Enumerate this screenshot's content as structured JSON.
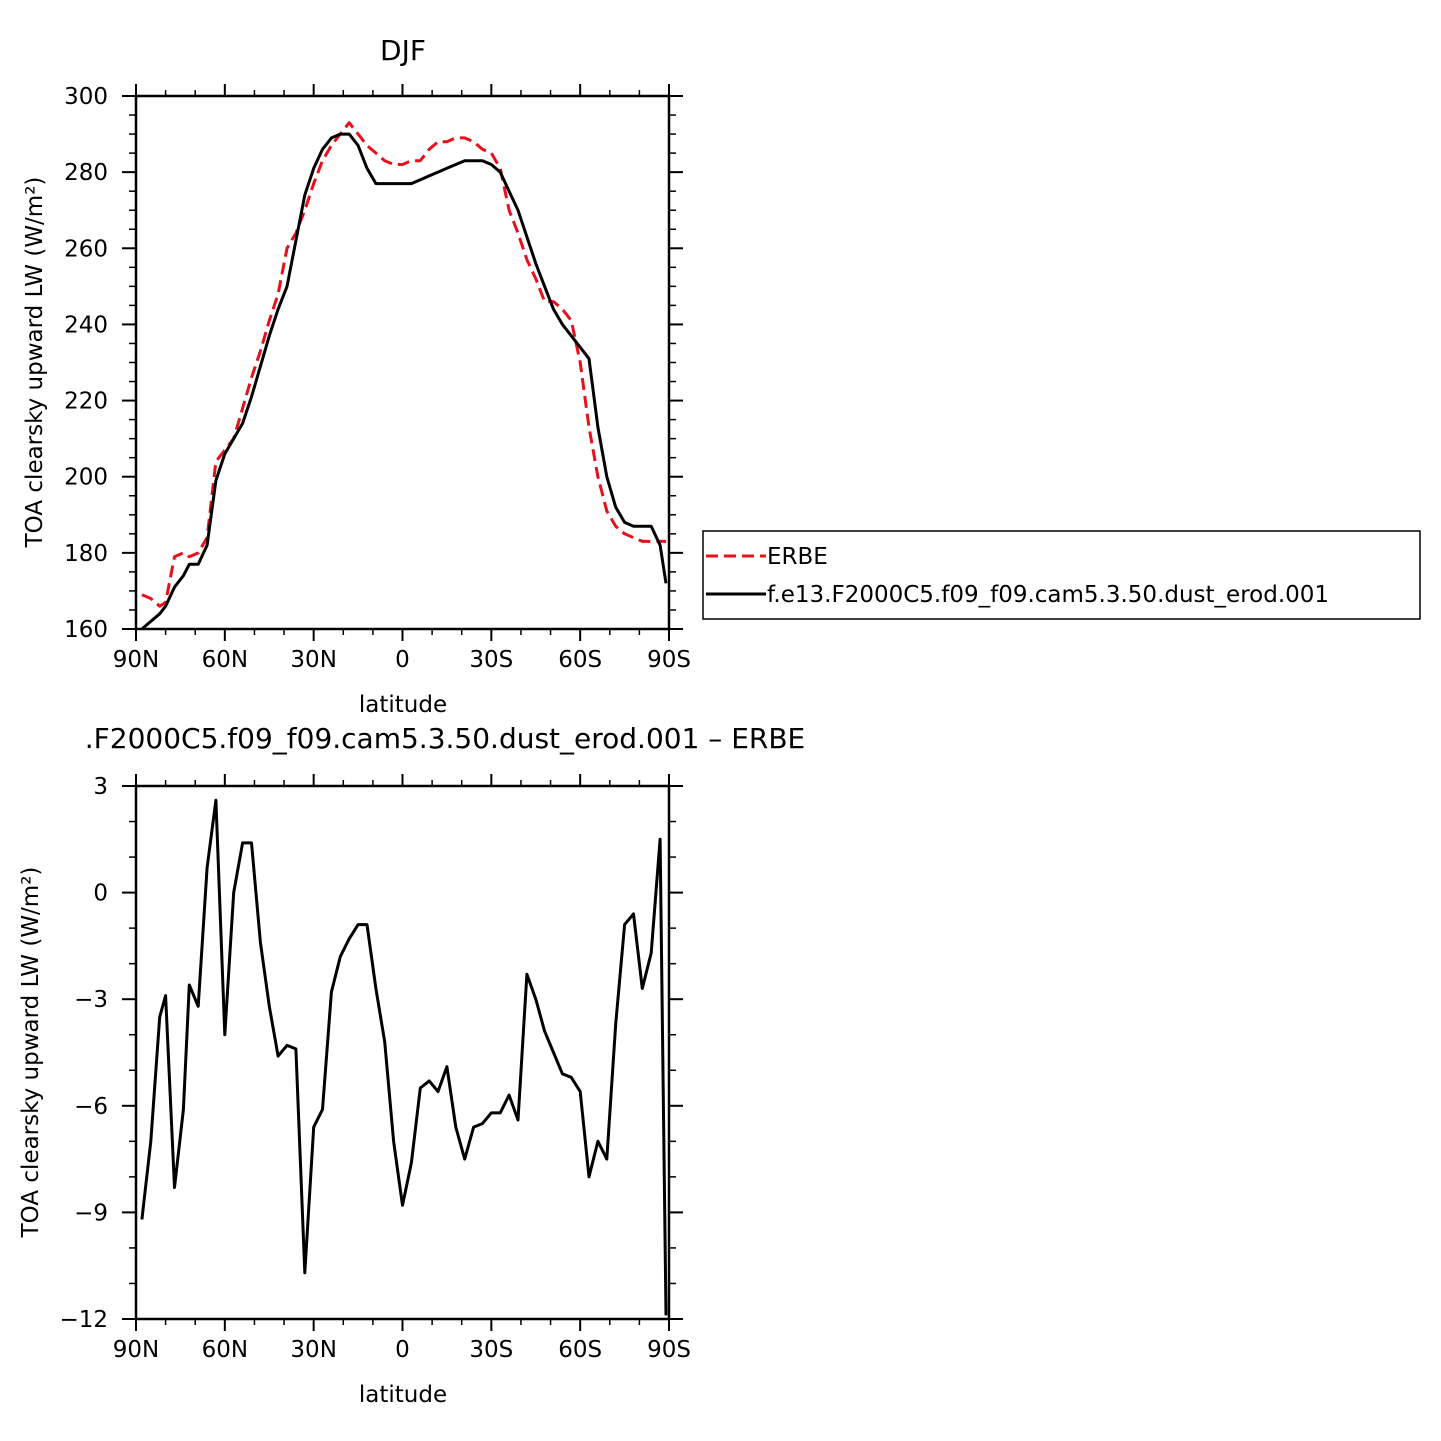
{
  "chart_data": [
    {
      "type": "line",
      "title": "DJF",
      "xlabel": "latitude",
      "ylabel": "TOA clearsky upward LW (W/m²)",
      "xlim": [
        -90,
        90
      ],
      "ylim": [
        160,
        300
      ],
      "x_ticks": [
        {
          "value": -90,
          "label": "90N"
        },
        {
          "value": -60,
          "label": "60N"
        },
        {
          "value": -30,
          "label": "30N"
        },
        {
          "value": 0,
          "label": "0"
        },
        {
          "value": 30,
          "label": "30S"
        },
        {
          "value": 60,
          "label": "60S"
        },
        {
          "value": 90,
          "label": "90S"
        }
      ],
      "y_ticks": [
        160,
        180,
        200,
        220,
        240,
        260,
        280,
        300
      ],
      "legend_position": "right",
      "series": [
        {
          "name": "ERBE",
          "color": "#e8101a",
          "dash": "dashed",
          "x": [
            -88,
            -85,
            -82,
            -80,
            -77,
            -74,
            -72,
            -69,
            -66,
            -63,
            -60,
            -57,
            -54,
            -51,
            -48,
            -45,
            -42,
            -39,
            -36,
            -33,
            -30,
            -27,
            -24,
            -21,
            -18,
            -15,
            -12,
            -9,
            -6,
            -3,
            0,
            3,
            6,
            9,
            12,
            15,
            18,
            21,
            24,
            27,
            30,
            33,
            36,
            39,
            42,
            45,
            48,
            51,
            54,
            57,
            60,
            63,
            66,
            69,
            72,
            75,
            78,
            81,
            84,
            87,
            89
          ],
          "y": [
            169,
            168,
            166,
            167,
            179,
            180,
            179,
            180,
            184,
            204,
            207,
            210,
            218,
            226,
            233,
            241,
            248,
            260,
            264,
            270,
            277,
            283,
            287,
            290,
            293,
            290,
            287,
            285,
            283,
            282,
            282,
            283,
            283,
            286,
            288,
            288,
            289,
            289,
            288,
            286,
            285,
            281,
            270,
            264,
            257,
            252,
            246,
            246,
            244,
            241,
            230,
            213,
            200,
            191,
            187,
            185,
            184,
            183,
            183,
            183,
            183
          ]
        },
        {
          "name": "f.e13.F2000C5.f09_f09.cam5.3.50.dust_erod.001",
          "color": "#000000",
          "dash": "solid",
          "x": [
            -88,
            -85,
            -82,
            -80,
            -77,
            -74,
            -72,
            -69,
            -66,
            -63,
            -60,
            -57,
            -54,
            -51,
            -48,
            -45,
            -42,
            -39,
            -36,
            -33,
            -30,
            -27,
            -24,
            -21,
            -18,
            -15,
            -12,
            -9,
            -6,
            -3,
            0,
            3,
            6,
            9,
            12,
            15,
            18,
            21,
            24,
            27,
            30,
            33,
            36,
            39,
            42,
            45,
            48,
            51,
            54,
            57,
            60,
            63,
            66,
            69,
            72,
            75,
            78,
            81,
            84,
            87,
            89
          ],
          "y": [
            160,
            162,
            164,
            166,
            171,
            174,
            177,
            177,
            182,
            199,
            206,
            210,
            214,
            221,
            229,
            237,
            244,
            250,
            262,
            274,
            281,
            286,
            289,
            290,
            290,
            287,
            281,
            277,
            277,
            277,
            277,
            277,
            278,
            279,
            280,
            281,
            282,
            283,
            283,
            283,
            282,
            280,
            275,
            270,
            263,
            256,
            250,
            244,
            240,
            237,
            234,
            231,
            213,
            200,
            192,
            188,
            187,
            187,
            187,
            182,
            172
          ]
        }
      ]
    },
    {
      "type": "line",
      "title": ".F2000C5.f09_f09.cam5.3.50.dust_erod.001 – ERBE",
      "xlabel": "latitude",
      "ylabel": "TOA clearsky upward LW (W/m²)",
      "xlim": [
        -90,
        90
      ],
      "ylim": [
        -12,
        3
      ],
      "x_ticks": [
        {
          "value": -90,
          "label": "90N"
        },
        {
          "value": -60,
          "label": "60N"
        },
        {
          "value": -30,
          "label": "30N"
        },
        {
          "value": 0,
          "label": "0"
        },
        {
          "value": 30,
          "label": "30S"
        },
        {
          "value": 60,
          "label": "60S"
        },
        {
          "value": 90,
          "label": "90S"
        }
      ],
      "y_ticks": [
        {
          "value": 3,
          "label": "3"
        },
        {
          "value": 0,
          "label": "0"
        },
        {
          "value": -3,
          "label": "−3"
        },
        {
          "value": -6,
          "label": "−6"
        },
        {
          "value": -9,
          "label": "−9"
        },
        {
          "value": -12,
          "label": "−12"
        }
      ],
      "series": [
        {
          "color": "#000000",
          "dash": "solid",
          "x": [
            -88,
            -85,
            -82,
            -80,
            -77,
            -74,
            -72,
            -69,
            -66,
            -63,
            -60,
            -57,
            -54,
            -51,
            -48,
            -45,
            -42,
            -39,
            -36,
            -33,
            -30,
            -27,
            -24,
            -21,
            -18,
            -15,
            -12,
            -9,
            -6,
            -3,
            0,
            3,
            6,
            9,
            12,
            15,
            18,
            21,
            24,
            27,
            30,
            33,
            36,
            39,
            42,
            45,
            48,
            51,
            54,
            57,
            60,
            63,
            66,
            69,
            72,
            75,
            78,
            81,
            84,
            87,
            89
          ],
          "y": [
            -9.2,
            -7.0,
            -3.5,
            -2.9,
            -8.3,
            -6.1,
            -2.6,
            -3.2,
            0.7,
            2.6,
            -4.0,
            0.0,
            1.4,
            1.4,
            -1.4,
            -3.2,
            -4.6,
            -4.3,
            -4.4,
            -10.7,
            -6.6,
            -6.1,
            -2.8,
            -1.8,
            -1.3,
            -0.9,
            -0.9,
            -2.7,
            -4.2,
            -7.0,
            -8.8,
            -7.6,
            -5.5,
            -5.3,
            -5.6,
            -4.9,
            -6.6,
            -7.5,
            -6.6,
            -6.5,
            -6.2,
            -6.2,
            -5.7,
            -6.4,
            -2.3,
            -3.0,
            -3.9,
            -4.5,
            -5.1,
            -5.2,
            -5.6,
            -8.0,
            -7.0,
            -7.5,
            -3.7,
            -0.9,
            -0.6,
            -2.7,
            -1.7,
            1.5,
            -11.9
          ]
        }
      ]
    }
  ]
}
